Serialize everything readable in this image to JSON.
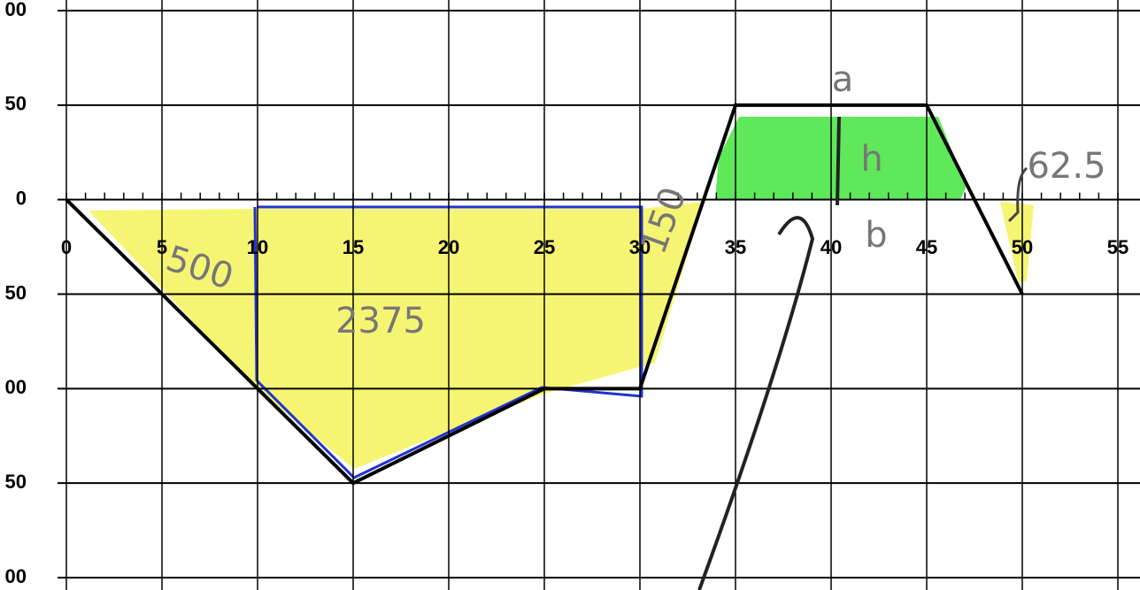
{
  "chart_data": {
    "type": "line",
    "x": [
      0,
      10,
      15,
      25,
      30,
      35,
      45,
      50
    ],
    "values": [
      0,
      -100,
      -150,
      -100,
      -100,
      50,
      50,
      -50
    ],
    "color": "#000000",
    "xlim": [
      0,
      55
    ],
    "xticks": [
      0,
      5,
      10,
      15,
      20,
      25,
      30,
      35,
      40,
      45,
      50,
      55
    ],
    "ylim": [
      -200,
      100
    ],
    "yticks": [
      {
        "value": -200,
        "label": "00"
      },
      {
        "value": -150,
        "label": "50"
      },
      {
        "value": -100,
        "label": "00"
      },
      {
        "value": -50,
        "label": "50"
      },
      0,
      50,
      {
        "value": 100,
        "label": "00"
      }
    ],
    "grid": true,
    "annotations": [
      "500",
      "2375",
      "150",
      "62.5",
      "a",
      "h",
      "b"
    ]
  }
}
